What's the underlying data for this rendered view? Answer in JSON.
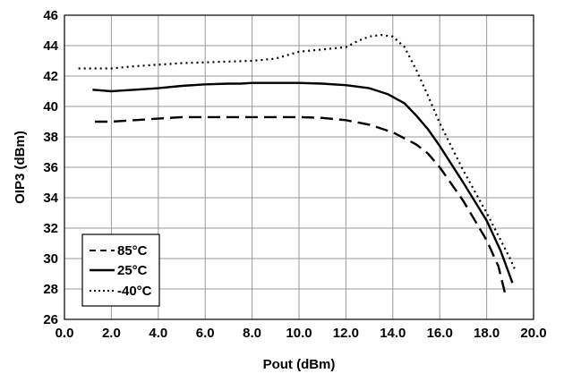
{
  "chart_data": {
    "type": "line",
    "title": "",
    "xlabel": "Pout (dBm)",
    "ylabel": "OIP3 (dBm)",
    "xlim": [
      0,
      20
    ],
    "ylim": [
      26,
      46
    ],
    "x_ticks": [
      "0.0",
      "2.0",
      "4.0",
      "6.0",
      "8.0",
      "10.0",
      "12.0",
      "14.0",
      "16.0",
      "18.0",
      "20.0"
    ],
    "y_ticks": [
      "26",
      "28",
      "30",
      "32",
      "34",
      "36",
      "38",
      "40",
      "42",
      "44",
      "46"
    ],
    "grid": true,
    "legend_position": "bottom-left",
    "series": [
      {
        "name": "85°C",
        "style": "dashed",
        "color": "#000000",
        "x": [
          1.3,
          2.0,
          3.0,
          4.0,
          5.0,
          6.0,
          7.0,
          8.0,
          9.0,
          10.0,
          11.0,
          12.0,
          13.0,
          14.0,
          15.0,
          15.5,
          16.0,
          17.0,
          18.0,
          18.5,
          18.8
        ],
        "y": [
          39.0,
          39.0,
          39.1,
          39.2,
          39.3,
          39.3,
          39.3,
          39.3,
          39.3,
          39.3,
          39.25,
          39.1,
          38.8,
          38.3,
          37.5,
          36.9,
          36.0,
          33.8,
          31.2,
          29.5,
          27.6
        ]
      },
      {
        "name": "25°C",
        "style": "solid",
        "color": "#000000",
        "x": [
          1.2,
          2.0,
          3.0,
          4.0,
          5.0,
          6.0,
          7.0,
          7.5,
          8.0,
          9.0,
          10.0,
          11.0,
          12.0,
          13.0,
          13.8,
          14.5,
          15.0,
          15.5,
          16.0,
          17.0,
          18.0,
          18.6,
          19.1
        ],
        "y": [
          41.1,
          41.0,
          41.1,
          41.2,
          41.35,
          41.45,
          41.5,
          41.5,
          41.55,
          41.55,
          41.55,
          41.5,
          41.4,
          41.2,
          40.8,
          40.2,
          39.4,
          38.5,
          37.4,
          35.0,
          32.5,
          30.5,
          28.4
        ]
      },
      {
        "name": "-40°C",
        "style": "dotted",
        "color": "#000000",
        "x": [
          0.6,
          1.0,
          2.0,
          3.0,
          4.0,
          5.0,
          6.0,
          7.0,
          8.0,
          9.0,
          10.0,
          11.0,
          12.0,
          12.5,
          13.0,
          13.5,
          14.0,
          14.5,
          15.0,
          15.5,
          16.0,
          17.0,
          18.0,
          19.0,
          19.2
        ],
        "y": [
          42.5,
          42.5,
          42.5,
          42.65,
          42.75,
          42.85,
          42.9,
          42.95,
          43.0,
          43.15,
          43.6,
          43.75,
          43.9,
          44.3,
          44.6,
          44.7,
          44.6,
          43.9,
          42.4,
          40.7,
          38.9,
          35.8,
          33.0,
          30.0,
          29.3
        ]
      }
    ]
  }
}
